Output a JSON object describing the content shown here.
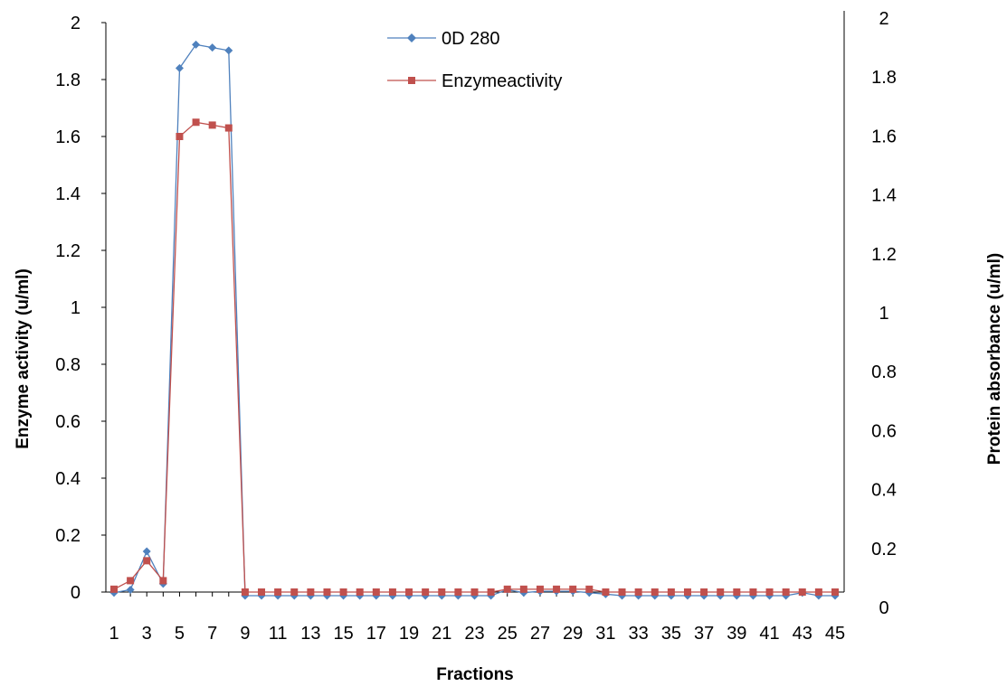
{
  "chart_data": {
    "type": "line",
    "xlabel": "Fractions",
    "ylabel_left": "Enzyme activity (u/ml)",
    "ylabel_right": "Protein absorbance (u/ml)",
    "x": [
      1,
      2,
      3,
      4,
      5,
      6,
      7,
      8,
      9,
      10,
      11,
      12,
      13,
      14,
      15,
      16,
      17,
      18,
      19,
      20,
      21,
      22,
      23,
      24,
      25,
      26,
      27,
      28,
      29,
      30,
      31,
      32,
      33,
      34,
      35,
      36,
      37,
      38,
      39,
      40,
      41,
      42,
      43,
      44,
      45
    ],
    "x_tick_labels": [
      "1",
      "3",
      "5",
      "7",
      "9",
      "11",
      "13",
      "15",
      "17",
      "19",
      "21",
      "23",
      "25",
      "27",
      "29",
      "31",
      "33",
      "35",
      "37",
      "39",
      "41",
      "43",
      "45"
    ],
    "ylim_left": [
      0,
      2
    ],
    "y_ticks_left": [
      "0",
      "0.2",
      "0.4",
      "0.6",
      "0.8",
      "1",
      "1.2",
      "1.4",
      "1.6",
      "1.8",
      "2"
    ],
    "ylim_right": [
      0,
      2
    ],
    "y_ticks_right": [
      "0",
      "0.2",
      "0.4",
      "0.6",
      "0.8",
      "1",
      "1.2",
      "1.4",
      "1.6",
      "1.8",
      "2"
    ],
    "grid": false,
    "legend_position": "top-center",
    "series": [
      {
        "name": "0D 280",
        "axis": "right",
        "color": "#4F81BD",
        "marker": "diamond",
        "values": [
          0.05,
          0.06,
          0.19,
          0.08,
          1.83,
          1.91,
          1.9,
          1.89,
          0.04,
          0.04,
          0.04,
          0.04,
          0.04,
          0.04,
          0.04,
          0.04,
          0.04,
          0.04,
          0.04,
          0.04,
          0.04,
          0.04,
          0.04,
          0.04,
          0.06,
          0.05,
          0.055,
          0.055,
          0.055,
          0.05,
          0.045,
          0.04,
          0.04,
          0.04,
          0.04,
          0.04,
          0.04,
          0.04,
          0.04,
          0.04,
          0.04,
          0.04,
          0.05,
          0.04,
          0.04
        ]
      },
      {
        "name": "Enzymeactivity",
        "axis": "left",
        "color": "#C0504D",
        "marker": "square",
        "values": [
          0.01,
          0.04,
          0.11,
          0.04,
          1.6,
          1.65,
          1.64,
          1.63,
          0,
          0,
          0,
          0,
          0,
          0,
          0,
          0,
          0,
          0,
          0,
          0,
          0,
          0,
          0,
          0,
          0.01,
          0.01,
          0.01,
          0.01,
          0.01,
          0.01,
          0,
          0,
          0,
          0,
          0,
          0,
          0,
          0,
          0,
          0,
          0,
          0,
          0,
          0,
          0
        ]
      }
    ]
  }
}
